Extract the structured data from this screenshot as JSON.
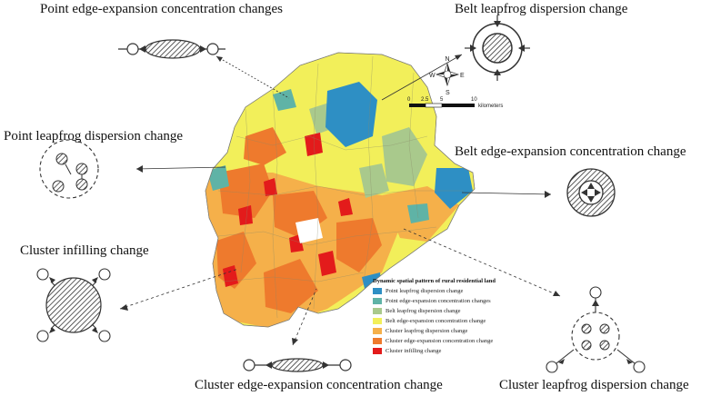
{
  "labels": {
    "point_edge": "Point edge-expansion concentration changes",
    "belt_leapfrog": "Belt leapfrog dispersion change",
    "point_leapfrog": "Point leapfrog dispersion change",
    "belt_edge": "Belt edge-expansion concentration change",
    "cluster_infilling": "Cluster infilling change",
    "cluster_edge": "Cluster edge-expansion concentration change",
    "cluster_leapfrog": "Cluster leapfrog dispersion change"
  },
  "legend": {
    "title": "Dynamic spatial pattern of rural residential land",
    "items": [
      {
        "label": "Point leapfrog dispersion change",
        "color": "#2e8fc4"
      },
      {
        "label": "Point edge-expansion concentration changes",
        "color": "#5fb3a6"
      },
      {
        "label": "Belt leapfrog dispersion change",
        "color": "#a9c98c"
      },
      {
        "label": "Belt edge-expansion concentration change",
        "color": "#f2ef5a"
      },
      {
        "label": "Cluster leapfrog dispersion change",
        "color": "#f5b04a"
      },
      {
        "label": "Cluster edge-expansion concentration change",
        "color": "#ee7a2d"
      },
      {
        "label": "Cluster infilling change",
        "color": "#e31b1b"
      }
    ]
  },
  "compass": {
    "n": "N",
    "s": "S",
    "e": "E",
    "w": "W"
  },
  "scale": {
    "ticks": [
      "0",
      "2.5",
      "5",
      "10"
    ],
    "unit": "kilometers"
  }
}
